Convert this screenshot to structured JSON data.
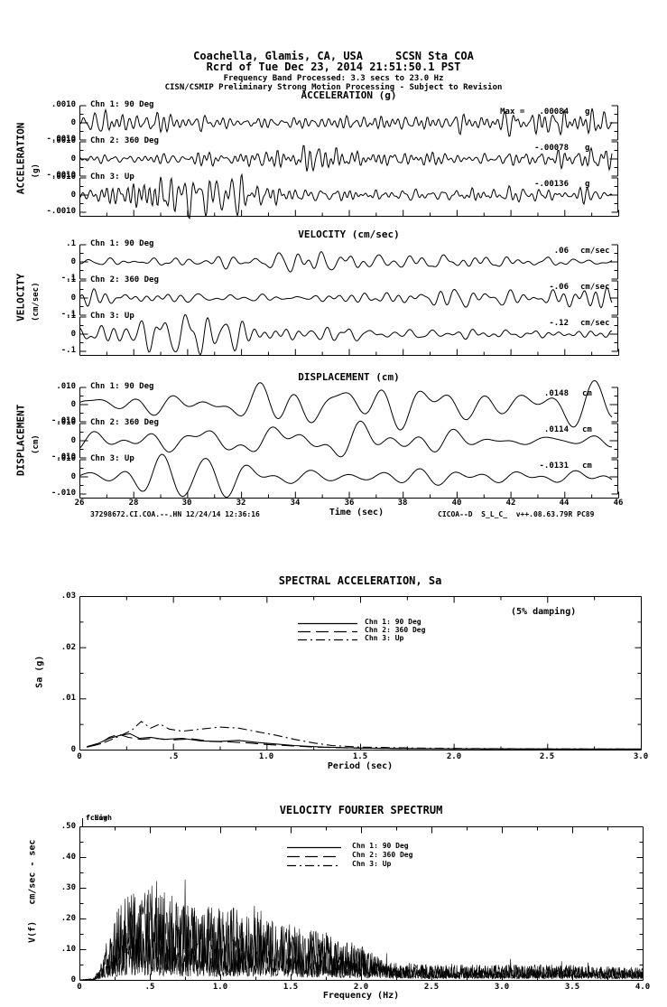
{
  "header": {
    "line1": "Coachella, Glamis, CA, USA     SCSN Sta COA",
    "line2": "Rcrd of Tue Dec 23, 2014 21:51:50.1 PST",
    "line3": "Frequency Band Processed: 3.3 secs to 23.0 Hz",
    "line4": "CISN/CSMIP Preliminary Strong Motion Processing - Subject to Revision"
  },
  "timeseries": {
    "xlabel": "Time (sec)",
    "x_ticks": [
      "26",
      "28",
      "30",
      "32",
      "34",
      "36",
      "38",
      "40",
      "42",
      "44",
      "46"
    ],
    "footer_left": "37298672.CI.COA.--.HN 12/24/14 12:36:16",
    "footer_right": "CICOA--D  S_L_C_  v++.08.63.79R PC89",
    "panels": [
      {
        "title": "ACCELERATION (g)",
        "side": "ACCELERATION",
        "side_unit": "(g)",
        "yticks": [
          ".0010",
          "0",
          "-.0010"
        ],
        "channels": [
          {
            "label": "Chn 1: 90 Deg",
            "peak": "Max =   .00084",
            "unit": "g"
          },
          {
            "label": "Chn 2: 360 Deg",
            "peak": "-.00078",
            "unit": "g"
          },
          {
            "label": "Chn 3: Up",
            "peak": "-.00136",
            "unit": "g"
          }
        ]
      },
      {
        "title": "VELOCITY (cm/sec)",
        "side": "VELOCITY",
        "side_unit": "(cm/sec)",
        "yticks": [
          ".1",
          "0",
          "-.1"
        ],
        "channels": [
          {
            "label": "Chn 1: 90 Deg",
            "peak": ".06",
            "unit": "cm/sec"
          },
          {
            "label": "Chn 2: 360 Deg",
            "peak": "-.06",
            "unit": "cm/sec"
          },
          {
            "label": "Chn 3: Up",
            "peak": "-.12",
            "unit": "cm/sec"
          }
        ]
      },
      {
        "title": "DISPLACEMENT (cm)",
        "side": "DISPLACEMENT",
        "side_unit": "(cm)",
        "yticks": [
          ".010",
          "0",
          "-.010"
        ],
        "channels": [
          {
            "label": "Chn 1: 90 Deg",
            "peak": ".0148",
            "unit": "cm"
          },
          {
            "label": "Chn 2: 360 Deg",
            "peak": ".0114",
            "unit": "cm"
          },
          {
            "label": "Chn 3: Up",
            "peak": "-.0131",
            "unit": "cm"
          }
        ]
      }
    ]
  },
  "sa": {
    "title": "SPECTRAL ACCELERATION, Sa",
    "damping_note": "(5% damping)",
    "ylabel": "Sa (g)",
    "xlabel": "Period (sec)",
    "yticks": [
      ".03",
      ".02",
      ".01",
      "0"
    ],
    "xticks": [
      "0",
      ".5",
      "1.0",
      "1.5",
      "2.0",
      "2.5",
      "3.0"
    ],
    "legend": [
      "Chn 1: 90 Deg",
      "Chn 2: 360 Deg",
      "Chn 3: Up"
    ]
  },
  "fourier": {
    "title": "VELOCITY FOURIER SPECTRUM",
    "ylabel": "V(f)   cm/sec - sec",
    "xlabel": "Frequency (Hz)",
    "fc_low": "fcLow",
    "fc_high": "fcHigh",
    "yticks": [
      ".50",
      ".40",
      ".30",
      ".20",
      ".10",
      "0"
    ],
    "xticks": [
      "0",
      ".5",
      "1.0",
      "1.5",
      "2.0",
      "2.5",
      "3.0",
      "3.5",
      "4.0"
    ],
    "legend": [
      "Chn 1: 90 Deg",
      "Chn 2: 360 Deg",
      "Chn 3: Up"
    ]
  },
  "chart_data": [
    {
      "type": "line",
      "title": "ACCELERATION (g)",
      "xlabel": "Time (sec)",
      "xlim": [
        26,
        46
      ],
      "trace_fullscale": 0.001,
      "ytick_values": [
        0.001,
        0,
        -0.001
      ],
      "series": [
        {
          "name": "Chn 1: 90 Deg",
          "peak": 0.00084,
          "peak_label": "Max =   .00084 g"
        },
        {
          "name": "Chn 2: 360 Deg",
          "peak": -0.00078,
          "peak_label": "-.00078 g"
        },
        {
          "name": "Chn 3: Up",
          "peak": -0.00136,
          "peak_label": "-.00136 g"
        }
      ],
      "note": "broadband seismic traces, 26-46 sec window"
    },
    {
      "type": "line",
      "title": "VELOCITY (cm/sec)",
      "xlabel": "Time (sec)",
      "xlim": [
        26,
        46
      ],
      "trace_fullscale": 0.1,
      "ytick_values": [
        0.1,
        0,
        -0.1
      ],
      "series": [
        {
          "name": "Chn 1: 90 Deg",
          "peak": 0.06,
          "peak_label": ".06 cm/sec"
        },
        {
          "name": "Chn 2: 360 Deg",
          "peak": -0.06,
          "peak_label": "-.06 cm/sec"
        },
        {
          "name": "Chn 3: Up",
          "peak": -0.12,
          "peak_label": "-.12 cm/sec"
        }
      ],
      "note": "broadband seismic traces, 26-46 sec window"
    },
    {
      "type": "line",
      "title": "DISPLACEMENT (cm)",
      "xlabel": "Time (sec)",
      "xlim": [
        26,
        46
      ],
      "trace_fullscale": 0.01,
      "ytick_values": [
        0.01,
        0,
        -0.01
      ],
      "series": [
        {
          "name": "Chn 1: 90 Deg",
          "peak": 0.0148,
          "peak_label": ".0148 cm"
        },
        {
          "name": "Chn 2: 360 Deg",
          "peak": 0.0114,
          "peak_label": ".0114 cm"
        },
        {
          "name": "Chn 3: Up",
          "peak": -0.0131,
          "peak_label": "-.0131 cm"
        }
      ],
      "note": "broadband seismic traces, 26-46 sec window"
    },
    {
      "type": "line",
      "title": "SPECTRAL ACCELERATION, Sa",
      "xlabel": "Period (sec)",
      "ylabel": "Sa (g)",
      "xlim": [
        0,
        3
      ],
      "ylim": [
        0,
        0.03
      ],
      "annotation": "(5% damping)",
      "legend_position": "upper center",
      "series": [
        {
          "name": "Chn 1: 90 Deg",
          "style": "solid",
          "points": [
            [
              0.04,
              0.0006
            ],
            [
              0.1,
              0.0012
            ],
            [
              0.16,
              0.0022
            ],
            [
              0.22,
              0.0028
            ],
            [
              0.27,
              0.0031
            ],
            [
              0.32,
              0.0022
            ],
            [
              0.38,
              0.0024
            ],
            [
              0.45,
              0.002
            ],
            [
              0.55,
              0.0022
            ],
            [
              0.65,
              0.0017
            ],
            [
              0.75,
              0.0016
            ],
            [
              0.85,
              0.0018
            ],
            [
              0.95,
              0.0014
            ],
            [
              1.05,
              0.0011
            ],
            [
              1.15,
              0.0008
            ],
            [
              1.3,
              0.0005
            ],
            [
              1.5,
              0.0003
            ],
            [
              1.8,
              0.0002
            ],
            [
              2.2,
              0.00015
            ],
            [
              2.6,
              0.0001
            ],
            [
              3.0,
              0.0001
            ]
          ]
        },
        {
          "name": "Chn 2: 360 Deg",
          "style": "long-dash",
          "points": [
            [
              0.04,
              0.0005
            ],
            [
              0.1,
              0.001
            ],
            [
              0.16,
              0.0024
            ],
            [
              0.21,
              0.003
            ],
            [
              0.26,
              0.0024
            ],
            [
              0.33,
              0.002
            ],
            [
              0.4,
              0.0022
            ],
            [
              0.5,
              0.0019
            ],
            [
              0.6,
              0.0021
            ],
            [
              0.7,
              0.0016
            ],
            [
              0.8,
              0.0015
            ],
            [
              0.9,
              0.0013
            ],
            [
              1.0,
              0.001
            ],
            [
              1.1,
              0.0008
            ],
            [
              1.25,
              0.0005
            ],
            [
              1.45,
              0.0003
            ],
            [
              1.8,
              0.0002
            ],
            [
              2.2,
              0.00015
            ],
            [
              2.6,
              0.0001
            ],
            [
              3.0,
              0.0001
            ]
          ]
        },
        {
          "name": "Chn 3: Up",
          "style": "dash-dot",
          "points": [
            [
              0.04,
              0.0005
            ],
            [
              0.12,
              0.0012
            ],
            [
              0.2,
              0.0024
            ],
            [
              0.28,
              0.0038
            ],
            [
              0.33,
              0.0055
            ],
            [
              0.38,
              0.0042
            ],
            [
              0.43,
              0.005
            ],
            [
              0.48,
              0.004
            ],
            [
              0.55,
              0.0036
            ],
            [
              0.65,
              0.004
            ],
            [
              0.75,
              0.0044
            ],
            [
              0.85,
              0.0042
            ],
            [
              0.95,
              0.0035
            ],
            [
              1.05,
              0.0028
            ],
            [
              1.15,
              0.002
            ],
            [
              1.25,
              0.0013
            ],
            [
              1.35,
              0.0008
            ],
            [
              1.5,
              0.0005
            ],
            [
              1.8,
              0.0003
            ],
            [
              2.2,
              0.0002
            ],
            [
              2.6,
              0.00015
            ],
            [
              3.0,
              0.0001
            ]
          ]
        }
      ]
    },
    {
      "type": "line",
      "title": "VELOCITY FOURIER SPECTRUM",
      "xlabel": "Frequency (Hz)",
      "ylabel": "V(f) cm/sec - sec",
      "xlim": [
        0,
        4
      ],
      "ylim": [
        0,
        0.5
      ],
      "filter_corner_labels": [
        "fcLow",
        "fcHigh"
      ],
      "series": [
        {
          "name": "Chn 1: 90 Deg",
          "style": "solid",
          "envelope_points": [
            [
              0.0,
              0
            ],
            [
              0.1,
              0.005
            ],
            [
              0.15,
              0.04
            ],
            [
              0.2,
              0.15
            ],
            [
              0.28,
              0.24
            ],
            [
              0.35,
              0.3
            ],
            [
              0.45,
              0.28
            ],
            [
              0.55,
              0.36
            ],
            [
              0.65,
              0.28
            ],
            [
              0.8,
              0.25
            ],
            [
              1.0,
              0.24
            ],
            [
              1.2,
              0.21
            ],
            [
              1.4,
              0.19
            ],
            [
              1.6,
              0.17
            ],
            [
              1.8,
              0.15
            ],
            [
              2.0,
              0.11
            ],
            [
              2.15,
              0.07
            ],
            [
              2.3,
              0.05
            ],
            [
              2.6,
              0.045
            ],
            [
              3.0,
              0.05
            ],
            [
              3.4,
              0.05
            ],
            [
              3.7,
              0.045
            ],
            [
              4.0,
              0.04
            ]
          ]
        },
        {
          "name": "Chn 2: 360 Deg",
          "style": "long-dash",
          "envelope_points": [
            [
              0.0,
              0
            ],
            [
              0.1,
              0.005
            ],
            [
              0.15,
              0.05
            ],
            [
              0.22,
              0.18
            ],
            [
              0.3,
              0.26
            ],
            [
              0.4,
              0.33
            ],
            [
              0.5,
              0.3
            ],
            [
              0.6,
              0.27
            ],
            [
              0.8,
              0.24
            ],
            [
              1.0,
              0.25
            ],
            [
              1.2,
              0.22
            ],
            [
              1.5,
              0.18
            ],
            [
              1.8,
              0.14
            ],
            [
              2.0,
              0.1
            ],
            [
              2.2,
              0.06
            ],
            [
              2.5,
              0.05
            ],
            [
              3.0,
              0.05
            ],
            [
              3.5,
              0.05
            ],
            [
              4.0,
              0.04
            ]
          ]
        },
        {
          "name": "Chn 3: Up",
          "style": "dash-dot",
          "envelope_points": [
            [
              0.0,
              0
            ],
            [
              0.1,
              0.004
            ],
            [
              0.18,
              0.06
            ],
            [
              0.28,
              0.12
            ],
            [
              0.4,
              0.16
            ],
            [
              0.55,
              0.14
            ],
            [
              0.7,
              0.12
            ],
            [
              0.9,
              0.11
            ],
            [
              1.1,
              0.1
            ],
            [
              1.4,
              0.09
            ],
            [
              1.7,
              0.08
            ],
            [
              2.0,
              0.06
            ],
            [
              2.3,
              0.04
            ],
            [
              2.7,
              0.035
            ],
            [
              3.2,
              0.035
            ],
            [
              3.6,
              0.03
            ],
            [
              4.0,
              0.03
            ]
          ]
        }
      ]
    }
  ]
}
